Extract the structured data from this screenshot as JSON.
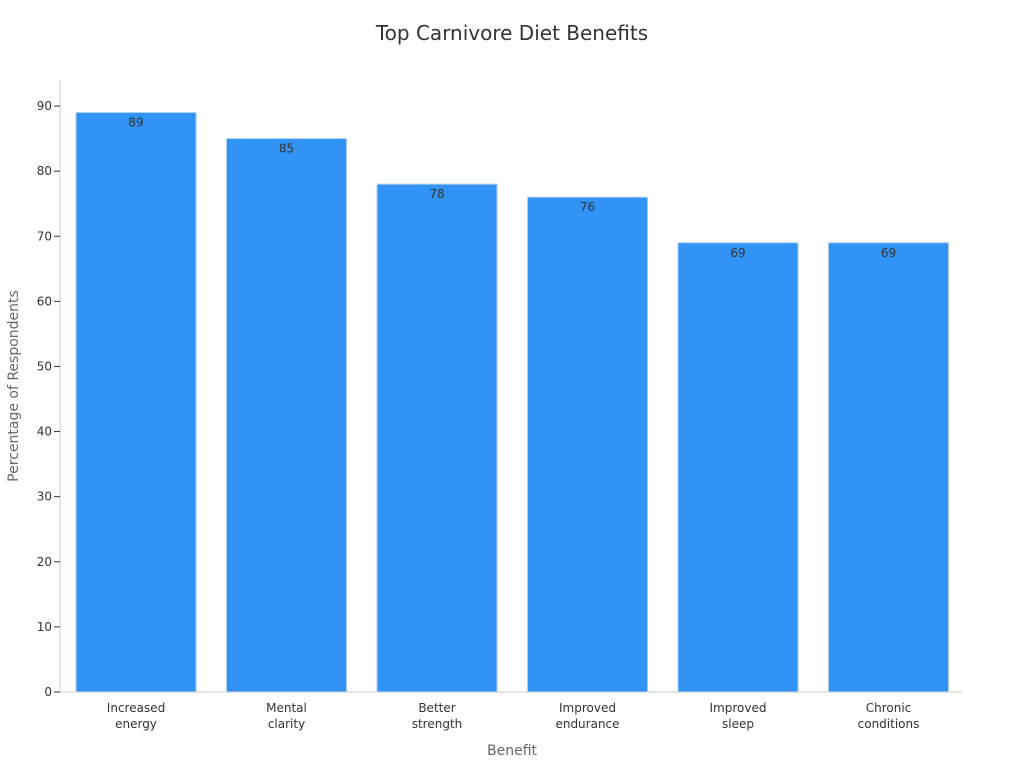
{
  "chart_data": {
    "type": "bar",
    "title": "Top Carnivore Diet Benefits",
    "xlabel": "Benefit",
    "ylabel": "Percentage of Respondents",
    "categories": [
      [
        "Increased",
        "energy"
      ],
      [
        "Mental",
        "clarity"
      ],
      [
        "Better",
        "strength"
      ],
      [
        "Improved",
        "endurance"
      ],
      [
        "Improved",
        "sleep"
      ],
      [
        "Chronic",
        "conditions"
      ]
    ],
    "values": [
      89,
      85,
      78,
      76,
      69,
      69
    ],
    "ylim": [
      0,
      94
    ],
    "yticks": [
      0,
      10,
      20,
      30,
      40,
      50,
      60,
      70,
      80,
      90
    ],
    "grid": false,
    "legend": "none",
    "colors": {
      "bar": "#3193f5",
      "bar_edge": "#a9cdf5",
      "axis": "#cccccc",
      "text": "#333333",
      "axis_title": "#666666"
    }
  }
}
